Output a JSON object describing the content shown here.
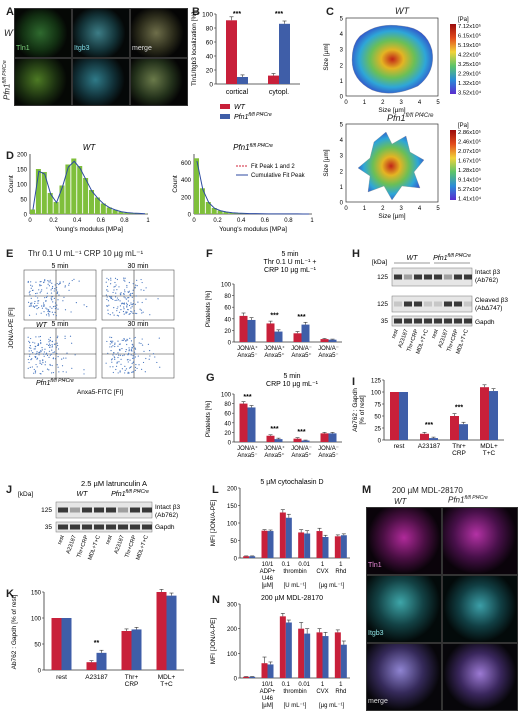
{
  "panel_letters": {
    "A": "A",
    "B": "B",
    "C": "C",
    "D": "D",
    "E": "E",
    "F": "F",
    "G": "G",
    "H": "H",
    "I": "I",
    "J": "J",
    "K": "K",
    "L": "L",
    "M": "M",
    "N": "N"
  },
  "colors": {
    "wt": "#c8203a",
    "pfn": "#3f5ea8",
    "green_hist": "#7fbf3b",
    "fit_red": "#d0233a",
    "fit_blue": "#2d4aa0"
  },
  "panelA": {
    "row_wt": "WT",
    "row_pfn": "Pfn1",
    "row_pfn_sup": "fl/fl Pf4Cre",
    "col_tln": "Tln1",
    "col_itgb": "Itgb3",
    "col_merge": "merge"
  },
  "panelB": {
    "ylabel": "Tln1/Itgb3 localization [%]",
    "categories": [
      "cortical",
      "cytopl."
    ],
    "legend_wt": "WT",
    "legend_pfn": "Pfn1",
    "legend_pfn_sup": "fl/fl Pf4Cre",
    "sig": "***"
  },
  "panelC": {
    "title_wt": "WT",
    "title_pfn": "Pfn1",
    "title_pfn_sup": "fl/fl Pf4Cre",
    "xlabel": "Size [µm]",
    "ylabel": "Size [µm]",
    "unit": "[Pa]",
    "scale_wt": [
      "7.12x10⁵",
      "6.15x10⁵",
      "5.19x10⁵",
      "4.22x10⁵",
      "3.25x10⁵",
      "2.29x10⁵",
      "1.32x10⁵",
      "3.52x10⁴"
    ],
    "scale_pfn": [
      "2.86x10⁵",
      "2.46x10⁵",
      "2.07x10⁵",
      "1.67x10⁵",
      "1.28x10⁵",
      "9.14x10⁴",
      "5.27x10⁴",
      "1.41x10⁴"
    ]
  },
  "panelD": {
    "title_wt": "WT",
    "title_pfn": "Pfn1",
    "title_pfn_sup": "fl/fl Pf4Cre",
    "xlabel": "Young's modulus [MPa]",
    "ylabel": "Count",
    "legend1": "Fit Peak 1 and 2",
    "legend2": "Cumulative Fit Peak"
  },
  "panelE": {
    "header": "Thr 0.1 U mL⁻¹ CRP 10 µg mL⁻¹",
    "t5": "5 min",
    "t30": "30 min",
    "row_wt": "WT",
    "row_pfn": "Pfn1",
    "row_pfn_sup": "fl/fl Pf4Cre",
    "ylabel": "JON/A-PE [FI]",
    "xlabel": "Anxa5-FITC [FI]"
  },
  "panelF": {
    "title1": "5 min",
    "title2": "Thr 0.1 U mL⁻¹ +",
    "title3": "CRP 10 µg mL⁻¹",
    "ylabel": "Platelets [%]",
    "cats_top": [
      "JON/A⁺",
      "JON/A⁺",
      "JON/A⁻",
      "JON/A⁻"
    ],
    "cats_bot": [
      "Anxa5⁻",
      "Anxa5⁺",
      "Anxa5⁺",
      "Anxa5⁻"
    ],
    "sig": "***"
  },
  "panelG": {
    "title1": "5 min",
    "title2": "CRP 10 µg mL⁻¹",
    "ylabel": "Platelets [%]",
    "cats_top": [
      "JON/A⁺",
      "JON/A⁺",
      "JON/A⁻",
      "JON/A⁻"
    ],
    "cats_bot": [
      "Anxa5⁻",
      "Anxa5⁺",
      "Anxa5⁺",
      "Anxa5⁻"
    ],
    "sig": "***"
  },
  "panelH": {
    "kda": "[kDa]",
    "wt": "WT",
    "pfn": "Pfn1",
    "pfn_sup": "fl/fl Pf4Cre",
    "mw": [
      "125",
      "125",
      "35"
    ],
    "band1a": "Intact β3",
    "band1b": "(Ab762)",
    "band2a": "Cleaved β3",
    "band2b": "(AbΔ747)",
    "band3": "Gapdh",
    "lanes": [
      "rest",
      "A23187",
      "Thr+CRP",
      "MDL+T+C",
      "rest",
      "A23187",
      "Thr+CRP",
      "MDL+T+C"
    ]
  },
  "panelI": {
    "ylabel1": "Ab762 : Gapdh",
    "ylabel2": "[% of rest]",
    "categories": [
      "rest",
      "A23187",
      "Thr+\nCRP",
      "MDL+\nT+C"
    ],
    "sig": "***"
  },
  "panelJ": {
    "header": "2.5 µM latrunculin A",
    "kda": "[kDa]",
    "wt": "WT",
    "pfn": "Pfn1",
    "pfn_sup": "fl/fl Pf4Cre",
    "mw": [
      "125",
      "35"
    ],
    "band1a": "Intact β3",
    "band1b": "(Ab762)",
    "band2": "Gapdh",
    "lanes": [
      "rest",
      "A23187",
      "Thr+CRP",
      "MDL+T+C",
      "rest",
      "A23187",
      "Thr+CRP",
      "MDL+T+C"
    ]
  },
  "panelK": {
    "ylabel": "Ab762 : Gapdh [% of rest]",
    "categories": [
      "rest",
      "A23187",
      "Thr+\nCRP",
      "MDL+\nT+C"
    ],
    "sig": "**"
  },
  "panelL": {
    "title": "5 µM cytochalasin D",
    "ylabel": "MFI [JON/A-PE]",
    "ticks": [
      "10/1",
      "0.1",
      "0.01",
      "1",
      "1"
    ],
    "group_top": [
      "ADP+",
      "thrombin",
      "CVX",
      "Rhd"
    ],
    "group_top2": [
      "U46",
      "",
      "",
      ""
    ],
    "units": [
      "[µM]",
      "[U mL⁻¹]",
      "[µg mL⁻¹]"
    ]
  },
  "panelM": {
    "title": "200 µM MDL-28170",
    "wt": "WT",
    "pfn": "Pfn1",
    "pfn_sup": "fl/fl Pf4Cre",
    "row1": "Tln1",
    "row2": "Itgb3",
    "row3": "merge"
  },
  "panelN": {
    "title": "200 µM MDL-28170",
    "ylabel": "MFI [JON/A-PE]",
    "ticks": [
      "10/1",
      "0.1",
      "0.01",
      "1",
      "1"
    ],
    "group_top": [
      "ADP+",
      "thrombin",
      "CVX",
      "Rhd"
    ],
    "group_top2": [
      "U46",
      "",
      "",
      ""
    ],
    "units": [
      "[µM]",
      "[U mL⁻¹]",
      "[µg mL⁻¹]"
    ]
  },
  "chart_data": [
    {
      "id": "B",
      "type": "bar",
      "categories": [
        "cortical",
        "cytopl."
      ],
      "series": [
        {
          "name": "WT",
          "values": [
            91,
            12
          ],
          "errors": [
            5,
            3
          ]
        },
        {
          "name": "Pfn1 fl/fl Pf4Cre",
          "values": [
            10,
            86
          ],
          "errors": [
            3,
            4
          ]
        }
      ],
      "ylim": [
        0,
        100
      ],
      "yticks": [
        0,
        20,
        40,
        60,
        80,
        100
      ]
    },
    {
      "id": "D_WT",
      "type": "bar",
      "x_ticks": [
        0,
        0.2,
        0.4,
        0.6,
        0.8,
        1.0
      ],
      "y_ticks": [
        0,
        50,
        100,
        150,
        200
      ],
      "xlim": [
        0,
        1.0
      ],
      "ylim": [
        0,
        200
      ],
      "hist": [
        15,
        150,
        140,
        70,
        40,
        95,
        165,
        185,
        160,
        120,
        80,
        55,
        35,
        22,
        14,
        8,
        5,
        3,
        2,
        1
      ]
    },
    {
      "id": "D_Pfn",
      "type": "bar",
      "x_ticks": [
        0,
        0.2,
        0.4,
        0.6,
        0.8,
        1.0
      ],
      "y_ticks": [
        0,
        200,
        400,
        600
      ],
      "xlim": [
        0,
        1.0
      ],
      "ylim": [
        0,
        700
      ],
      "hist": [
        650,
        300,
        140,
        70,
        40,
        25,
        15,
        10,
        8,
        5,
        4,
        3,
        2,
        2,
        1,
        1,
        1,
        1,
        0,
        0
      ]
    },
    {
      "id": "F",
      "type": "bar",
      "categories": [
        "JON/A+ Anxa5-",
        "JON/A+ Anxa5+",
        "JON/A- Anxa5+",
        "JON/A- Anxa5-"
      ],
      "series": [
        {
          "name": "WT",
          "values": [
            45,
            32,
            15,
            5
          ],
          "errors": [
            5,
            4,
            3,
            1
          ]
        },
        {
          "name": "Pfn1 fl/fl Pf4Cre",
          "values": [
            38,
            18,
            30,
            4
          ],
          "errors": [
            4,
            3,
            4,
            1
          ]
        }
      ],
      "ylim": [
        0,
        100
      ],
      "yticks": [
        0,
        20,
        40,
        60,
        80,
        100
      ]
    },
    {
      "id": "G",
      "type": "bar",
      "categories": [
        "JON/A+ Anxa5-",
        "JON/A+ Anxa5+",
        "JON/A- Anxa5+",
        "JON/A- Anxa5-"
      ],
      "series": [
        {
          "name": "WT",
          "values": [
            80,
            13,
            7,
            18
          ],
          "errors": [
            4,
            2,
            2,
            2
          ]
        },
        {
          "name": "Pfn1 fl/fl Pf4Cre",
          "values": [
            72,
            6,
            3,
            18
          ],
          "errors": [
            4,
            2,
            1,
            2
          ]
        }
      ],
      "ylim": [
        0,
        100
      ],
      "yticks": [
        0,
        20,
        40,
        60,
        80,
        100
      ]
    },
    {
      "id": "I",
      "type": "bar",
      "categories": [
        "rest",
        "A23187",
        "Thr+CRP",
        "MDL+T+C"
      ],
      "series": [
        {
          "name": "WT",
          "values": [
            100,
            13,
            50,
            110
          ],
          "errors": [
            0,
            3,
            5,
            5
          ]
        },
        {
          "name": "Pfn1 fl/fl Pf4Cre",
          "values": [
            100,
            4,
            33,
            102
          ],
          "errors": [
            0,
            2,
            4,
            5
          ]
        }
      ],
      "ylim": [
        0,
        125
      ],
      "yticks": [
        0,
        25,
        50,
        75,
        100,
        125
      ]
    },
    {
      "id": "K",
      "type": "bar",
      "categories": [
        "rest",
        "A23187",
        "Thr+CRP",
        "MDL+T+C"
      ],
      "series": [
        {
          "name": "WT",
          "values": [
            100,
            15,
            75,
            150
          ],
          "errors": [
            0,
            3,
            4,
            5
          ]
        },
        {
          "name": "Pfn1 fl/fl Pf4Cre",
          "values": [
            100,
            33,
            78,
            143
          ],
          "errors": [
            0,
            5,
            4,
            5
          ]
        }
      ],
      "ylim": [
        0,
        150
      ],
      "yticks": [
        0,
        50,
        100,
        150
      ]
    },
    {
      "id": "L",
      "type": "bar",
      "categories": [
        "rest",
        "ADP+U46 10/1",
        "thrombin 0.1",
        "thrombin 0.01",
        "CVX 1",
        "Rhd 1"
      ],
      "series": [
        {
          "name": "WT",
          "values": [
            5,
            78,
            130,
            73,
            77,
            62
          ],
          "errors": [
            1,
            3,
            8,
            8,
            8,
            4
          ]
        },
        {
          "name": "Pfn1 fl/fl Pf4Cre",
          "values": [
            5,
            77,
            115,
            70,
            60,
            65
          ],
          "errors": [
            1,
            3,
            10,
            8,
            5,
            4
          ]
        }
      ],
      "ylim": [
        0,
        200
      ],
      "yticks": [
        0,
        50,
        100,
        150,
        200
      ]
    },
    {
      "id": "N",
      "type": "bar",
      "categories": [
        "rest",
        "ADP+U46 10/1",
        "thrombin 0.1",
        "thrombin 0.01",
        "CVX 1",
        "Rhd 1"
      ],
      "series": [
        {
          "name": "WT",
          "values": [
            5,
            60,
            250,
            200,
            185,
            185
          ],
          "errors": [
            1,
            25,
            12,
            25,
            15,
            10
          ]
        },
        {
          "name": "Pfn1 fl/fl Pf4Cre",
          "values": [
            5,
            55,
            225,
            180,
            170,
            135
          ],
          "errors": [
            1,
            10,
            10,
            20,
            15,
            15
          ]
        }
      ],
      "ylim": [
        0,
        300
      ],
      "yticks": [
        0,
        100,
        200,
        300
      ]
    }
  ]
}
